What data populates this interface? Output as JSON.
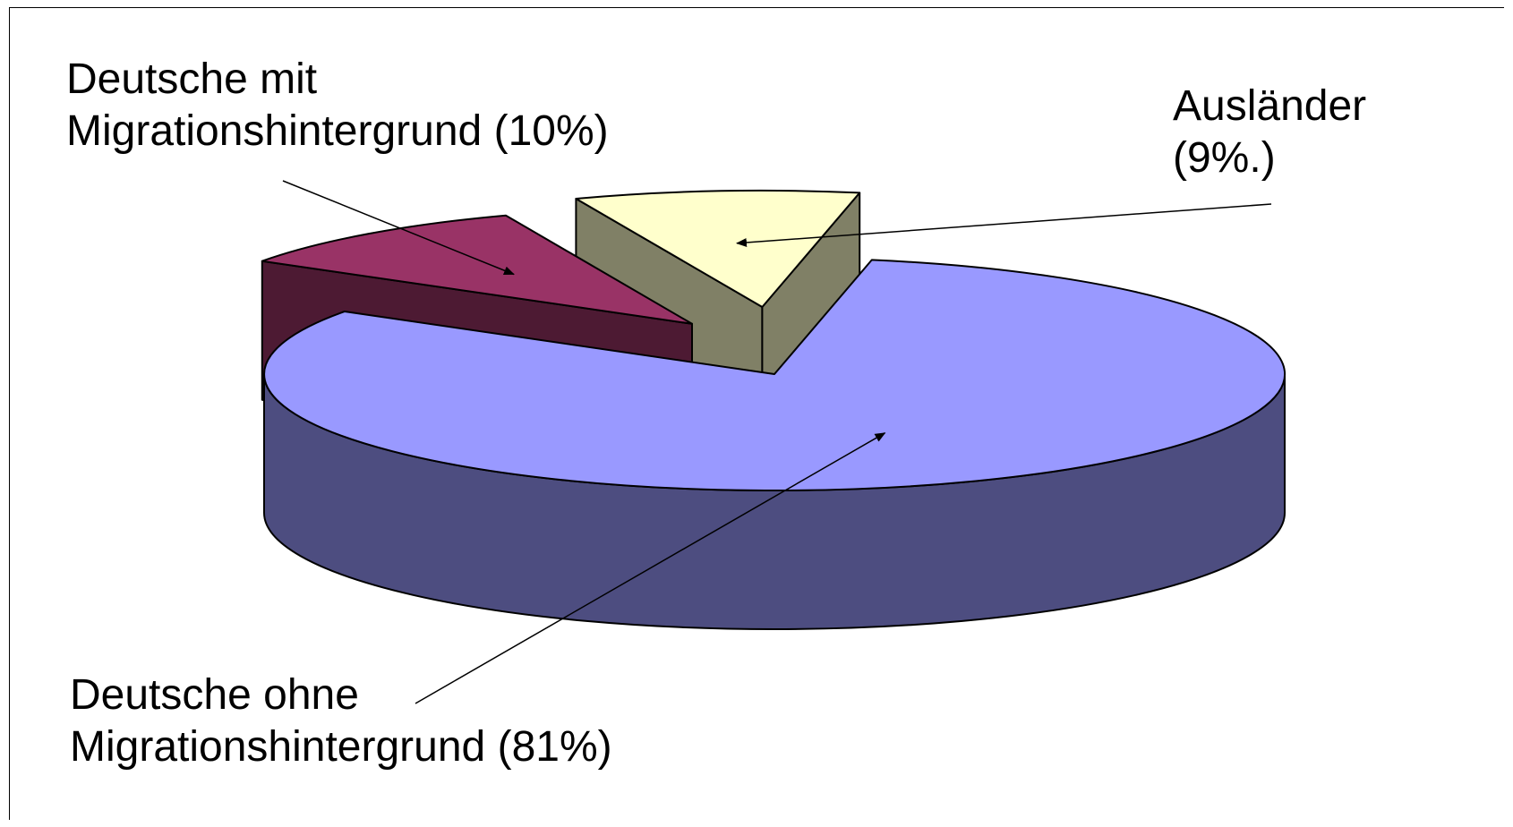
{
  "chart_data": {
    "type": "pie",
    "style": "3d-exploded",
    "legend": "none",
    "slices": [
      {
        "name": "Deutsche ohne Migrationshintergrund",
        "value": 81,
        "label_lines": [
          "Deutsche ohne",
          "Migrationshintergrund (81%)"
        ],
        "color_top": "#9999ff",
        "color_side": "#4d4d80"
      },
      {
        "name": "Deutsche mit Migrationshintergrund",
        "value": 10,
        "label_lines": [
          "Deutsche mit",
          "Migrationshintergrund (10%)"
        ],
        "color_top": "#993366",
        "color_side": "#4d1a33"
      },
      {
        "name": "Ausländer",
        "value": 9,
        "label_lines": [
          "Ausländer",
          "(9%.)"
        ],
        "color_top": "#ffffcc",
        "color_side": "#808066"
      }
    ]
  }
}
